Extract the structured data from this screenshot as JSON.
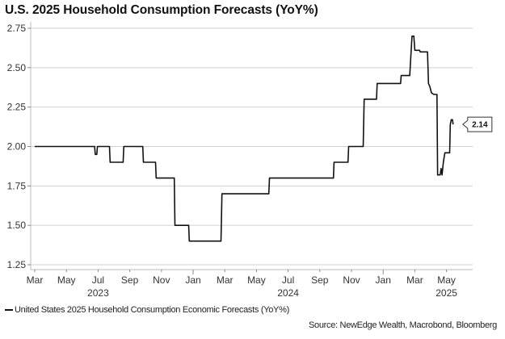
{
  "chart_data": {
    "type": "line",
    "title": "U.S. 2025 Household Consumption Forecasts (YoY%)",
    "xlabel": "",
    "ylabel": "",
    "ylim": [
      1.25,
      2.75
    ],
    "yticks": [
      "2.75",
      "2.50",
      "2.25",
      "2.00",
      "1.75",
      "1.50",
      "1.25"
    ],
    "ytick_values": [
      2.75,
      2.5,
      2.25,
      2.0,
      1.75,
      1.5,
      1.25
    ],
    "xlim_months": [
      -0.1,
      26.5
    ],
    "x_unit": "months since Mar 2023",
    "xticks": [
      {
        "label": "Mar",
        "year": "",
        "m": 0
      },
      {
        "label": "May",
        "year": "",
        "m": 2
      },
      {
        "label": "Jul",
        "year": "2023",
        "m": 4
      },
      {
        "label": "Sep",
        "year": "",
        "m": 6
      },
      {
        "label": "Nov",
        "year": "",
        "m": 8
      },
      {
        "label": "Jan",
        "year": "",
        "m": 10
      },
      {
        "label": "Mar",
        "year": "",
        "m": 12
      },
      {
        "label": "May",
        "year": "",
        "m": 14
      },
      {
        "label": "Jul",
        "year": "2024",
        "m": 16
      },
      {
        "label": "Sep",
        "year": "",
        "m": 18
      },
      {
        "label": "Nov",
        "year": "",
        "m": 20
      },
      {
        "label": "Jan",
        "year": "",
        "m": 22
      },
      {
        "label": "Mar",
        "year": "",
        "m": 24
      },
      {
        "label": "May",
        "year": "2025",
        "m": 26
      }
    ],
    "grid": true,
    "legend_position": "bottom-left",
    "series": [
      {
        "name": "United States 2025 Household Consumption Economic Forecasts (YoY%)",
        "color": "#111111",
        "points": [
          [
            0,
            2.0
          ],
          [
            3.78,
            2.0
          ],
          [
            3.82,
            1.95
          ],
          [
            3.92,
            1.95
          ],
          [
            3.96,
            2.0
          ],
          [
            4.72,
            2.0
          ],
          [
            4.76,
            1.9
          ],
          [
            5.58,
            1.9
          ],
          [
            5.62,
            2.0
          ],
          [
            6.82,
            2.0
          ],
          [
            6.86,
            1.9
          ],
          [
            7.63,
            1.9
          ],
          [
            7.67,
            1.8
          ],
          [
            8.81,
            1.8
          ],
          [
            8.85,
            1.5
          ],
          [
            9.72,
            1.5
          ],
          [
            9.76,
            1.4
          ],
          [
            11.76,
            1.4
          ],
          [
            11.82,
            1.7
          ],
          [
            14.78,
            1.7
          ],
          [
            14.82,
            1.8
          ],
          [
            18.86,
            1.8
          ],
          [
            18.9,
            1.9
          ],
          [
            19.78,
            1.9
          ],
          [
            19.82,
            2.0
          ],
          [
            20.74,
            2.0
          ],
          [
            20.8,
            2.3
          ],
          [
            21.58,
            2.3
          ],
          [
            21.62,
            2.4
          ],
          [
            23.1,
            2.4
          ],
          [
            23.14,
            2.45
          ],
          [
            23.68,
            2.45
          ],
          [
            23.82,
            2.7
          ],
          [
            23.94,
            2.7
          ],
          [
            24.0,
            2.61
          ],
          [
            24.3,
            2.61
          ],
          [
            24.34,
            2.6
          ],
          [
            24.8,
            2.6
          ],
          [
            24.86,
            2.4
          ],
          [
            24.95,
            2.38
          ],
          [
            25.05,
            2.34
          ],
          [
            25.2,
            2.33
          ],
          [
            25.4,
            2.33
          ],
          [
            25.44,
            1.82
          ],
          [
            25.6,
            1.82
          ],
          [
            25.66,
            1.86
          ],
          [
            25.72,
            1.82
          ],
          [
            25.8,
            1.9
          ],
          [
            25.9,
            1.96
          ],
          [
            26.2,
            1.96
          ],
          [
            26.24,
            2.14
          ],
          [
            26.3,
            2.17
          ],
          [
            26.38,
            2.17
          ],
          [
            26.42,
            2.14
          ]
        ],
        "last_value_label": "2.14"
      }
    ]
  },
  "legend": {
    "label": "United States 2025 Household Consumption Economic Forecasts (YoY%)"
  },
  "source": "Source: NewEdge Wealth, Macrobond, Bloomberg"
}
